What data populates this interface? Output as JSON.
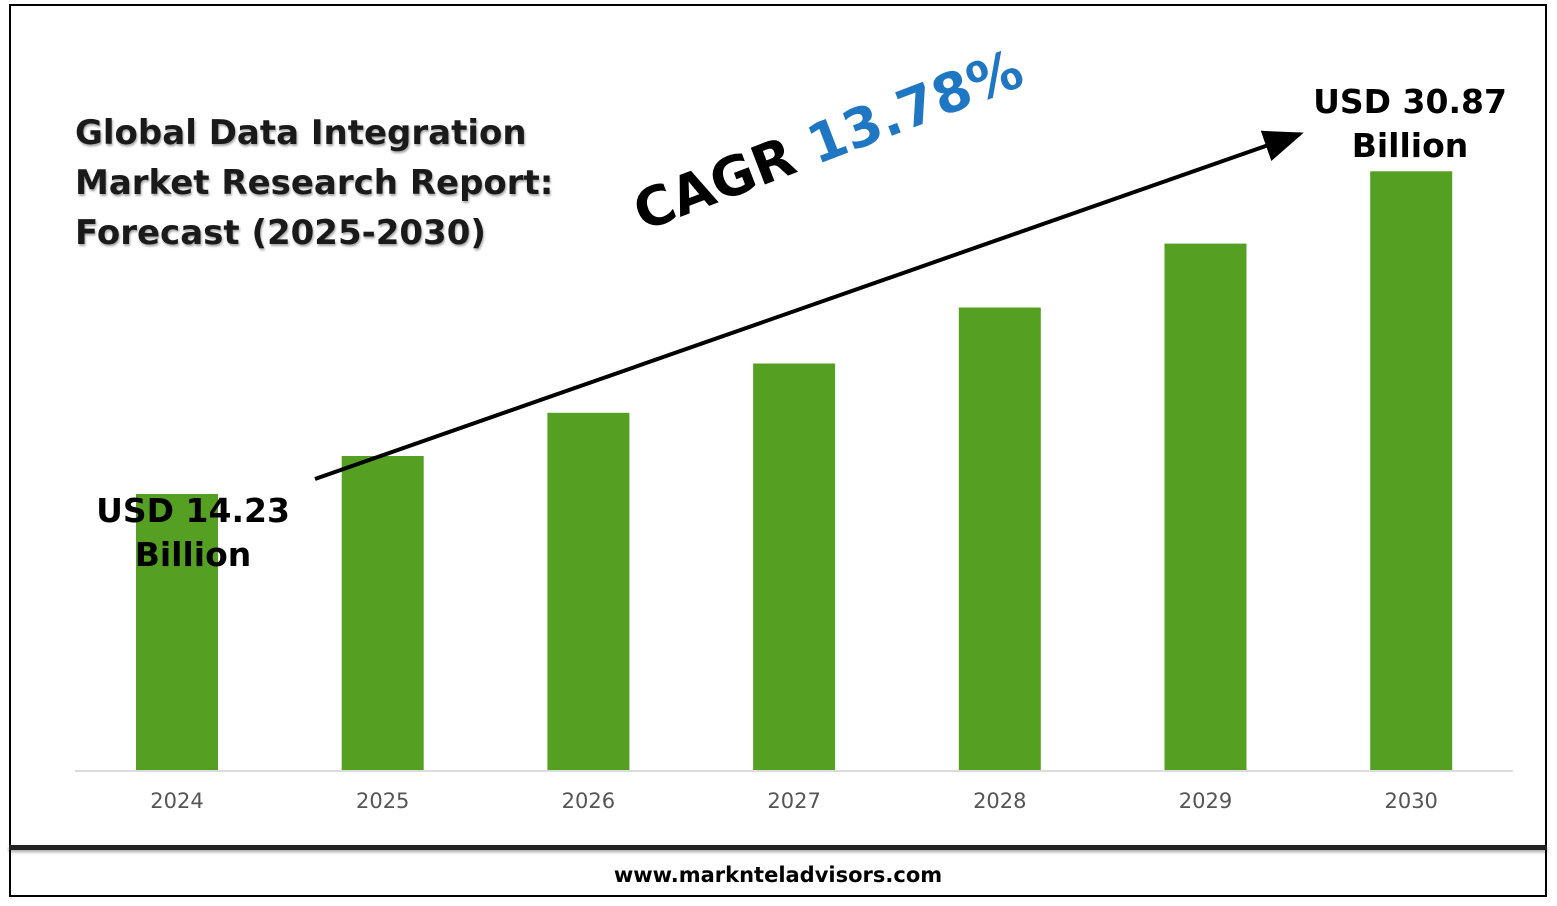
{
  "chart_data": {
    "type": "bar",
    "title": [
      "Global Data Integration",
      "Market Research Report:",
      "Forecast (2025-2030)"
    ],
    "categories": [
      "2024",
      "2025",
      "2026",
      "2027",
      "2028",
      "2029",
      "2030"
    ],
    "values": [
      14.23,
      16.19,
      18.42,
      20.96,
      23.85,
      27.14,
      30.87
    ],
    "unit": "USD Billion",
    "ylim": [
      0,
      33
    ],
    "bar_color": "#55a022",
    "grid": false,
    "annotations": {
      "start": [
        "USD 14.23",
        "Billion"
      ],
      "end": [
        "USD 30.87",
        "Billion"
      ],
      "cagr_label": "CAGR",
      "cagr_value": "13.78%"
    }
  },
  "colors": {
    "bar": "#55a022",
    "cagr_value": "#1f77c4",
    "text": "#000000"
  },
  "footer": {
    "website": "www.marknteladvisors.com"
  }
}
